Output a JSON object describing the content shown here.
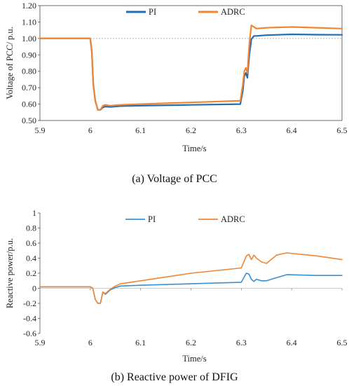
{
  "chart_data": [
    {
      "type": "line",
      "caption": "(a) Voltage of PCC",
      "xlabel": "Time/s",
      "ylabel": "Voltage of PCC/ p.u.",
      "xlim": [
        5.9,
        6.5
      ],
      "ylim": [
        0.5,
        1.2
      ],
      "x_ticks": [
        "5.9",
        "6",
        "6.1",
        "6.2",
        "6.3",
        "6.4",
        "6.5"
      ],
      "y_ticks": [
        "0.50",
        "0.60",
        "0.70",
        "0.80",
        "0.90",
        "1.00",
        "1.10",
        "1.20"
      ],
      "reference_line": 1.0,
      "legend_position": "top",
      "series": [
        {
          "name": "PI",
          "color": "#1f6fb4",
          "x": [
            5.9,
            6.0,
            6.003,
            6.006,
            6.01,
            6.015,
            6.02,
            6.025,
            6.03,
            6.04,
            6.06,
            6.1,
            6.2,
            6.298,
            6.303,
            6.306,
            6.309,
            6.312,
            6.316,
            6.32,
            6.325,
            6.33,
            6.35,
            6.4,
            6.45,
            6.5
          ],
          "values": [
            1.0,
            1.0,
            0.92,
            0.72,
            0.62,
            0.565,
            0.565,
            0.58,
            0.585,
            0.583,
            0.588,
            0.59,
            0.595,
            0.6,
            0.68,
            0.77,
            0.79,
            0.76,
            0.9,
            0.995,
            1.015,
            1.015,
            1.02,
            1.025,
            1.023,
            1.022
          ]
        },
        {
          "name": "ADRC",
          "color": "#f28532",
          "x": [
            5.9,
            6.0,
            6.003,
            6.006,
            6.01,
            6.015,
            6.02,
            6.025,
            6.03,
            6.04,
            6.06,
            6.1,
            6.2,
            6.298,
            6.303,
            6.306,
            6.309,
            6.312,
            6.316,
            6.32,
            6.325,
            6.33,
            6.35,
            6.4,
            6.45,
            6.5
          ],
          "values": [
            1.0,
            1.0,
            0.92,
            0.72,
            0.62,
            0.565,
            0.565,
            0.59,
            0.595,
            0.59,
            0.595,
            0.6,
            0.61,
            0.62,
            0.72,
            0.8,
            0.82,
            0.79,
            0.97,
            1.08,
            1.07,
            1.06,
            1.065,
            1.07,
            1.065,
            1.06
          ]
        }
      ]
    },
    {
      "type": "line",
      "caption": "(b) Reactive power of DFIG",
      "xlabel": "Time/s",
      "ylabel": "Reactive power/p.u.",
      "xlim": [
        5.9,
        6.5
      ],
      "ylim": [
        -0.6,
        1.0
      ],
      "x_ticks": [
        "5.9",
        "6",
        "6.1",
        "6.2",
        "6.3",
        "6.4",
        "6.5"
      ],
      "y_ticks": [
        "-0.6",
        "-0.4",
        "-0.2",
        "0",
        "0.2",
        "0.4",
        "0.6",
        "0.8",
        "1"
      ],
      "legend_position": "top",
      "series": [
        {
          "name": "PI",
          "color": "#3b8fd0",
          "x": [
            5.9,
            6.0,
            6.005,
            6.01,
            6.015,
            6.02,
            6.025,
            6.03,
            6.035,
            6.04,
            6.05,
            6.06,
            6.1,
            6.2,
            6.3,
            6.31,
            6.315,
            6.32,
            6.325,
            6.33,
            6.34,
            6.35,
            6.37,
            6.39,
            6.45,
            6.5
          ],
          "values": [
            0.02,
            0.02,
            0.0,
            -0.15,
            -0.2,
            -0.2,
            -0.05,
            -0.08,
            -0.05,
            -0.02,
            0.01,
            0.03,
            0.04,
            0.06,
            0.08,
            0.2,
            0.19,
            0.12,
            0.09,
            0.12,
            0.1,
            0.1,
            0.14,
            0.18,
            0.17,
            0.17
          ]
        },
        {
          "name": "ADRC",
          "color": "#f28532",
          "x": [
            5.9,
            6.0,
            6.005,
            6.01,
            6.015,
            6.02,
            6.025,
            6.03,
            6.035,
            6.04,
            6.05,
            6.06,
            6.1,
            6.2,
            6.3,
            6.31,
            6.315,
            6.32,
            6.325,
            6.33,
            6.34,
            6.35,
            6.37,
            6.39,
            6.45,
            6.5
          ],
          "values": [
            0.02,
            0.02,
            0.0,
            -0.15,
            -0.2,
            -0.2,
            -0.05,
            -0.07,
            -0.04,
            -0.01,
            0.03,
            0.06,
            0.1,
            0.2,
            0.27,
            0.43,
            0.45,
            0.38,
            0.44,
            0.4,
            0.35,
            0.33,
            0.44,
            0.47,
            0.43,
            0.38
          ]
        }
      ]
    }
  ]
}
